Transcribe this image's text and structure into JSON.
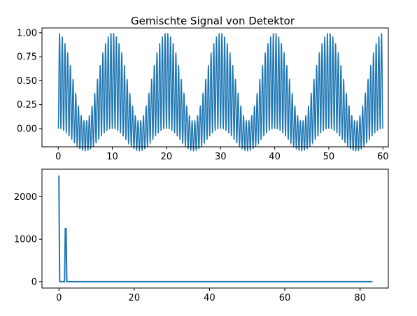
{
  "chart_data": [
    {
      "type": "line",
      "title": "Gemischte Signal von Detektor",
      "xlabel": "",
      "ylabel": "",
      "xlim": [
        -3,
        61
      ],
      "ylim": [
        -0.19,
        1.05
      ],
      "x_ticks": [
        0,
        10,
        20,
        30,
        40,
        50,
        60
      ],
      "x_tick_labels": [
        "0",
        "10",
        "20",
        "30",
        "40",
        "50",
        "60"
      ],
      "y_ticks": [
        0.0,
        0.25,
        0.5,
        0.75,
        1.0
      ],
      "y_tick_labels": [
        "0.00",
        "0.25",
        "0.50",
        "0.75",
        "1.00"
      ],
      "grid": false,
      "legend": "none",
      "color": "#1f77b4",
      "series": [
        {
          "description_of_shape": "mixed signal: fast carrier oscillation between about -0.23 and 1.0, amplitude envelope repeating every 10 units (peaks at x≈0,10,20,30,40,50,60, minima near x≈5,15,25,35,45,55)",
          "x_range": [
            0,
            60
          ],
          "carrier_period": 0.5,
          "envelope_period": 10,
          "max": 1.0,
          "min": -0.23
        }
      ]
    },
    {
      "type": "line",
      "title": "",
      "xlabel": "",
      "ylabel": "",
      "xlim": [
        -4.5,
        87.5
      ],
      "ylim": [
        -150,
        2650
      ],
      "x_ticks": [
        0,
        20,
        40,
        60,
        80
      ],
      "x_tick_labels": [
        "0",
        "20",
        "40",
        "60",
        "80"
      ],
      "y_ticks": [
        0,
        1000,
        2000
      ],
      "y_tick_labels": [
        "0",
        "1000",
        "2000"
      ],
      "grid": false,
      "legend": "none",
      "color": "#1f77b4",
      "series": [
        {
          "points": [
            [
              0,
              2500
            ],
            [
              0.1,
              1250
            ],
            [
              0.2,
              0
            ],
            [
              1.5,
              0
            ],
            [
              1.7,
              1250
            ],
            [
              1.9,
              1250
            ],
            [
              2.1,
              0
            ],
            [
              83.3,
              0
            ]
          ]
        }
      ]
    }
  ]
}
